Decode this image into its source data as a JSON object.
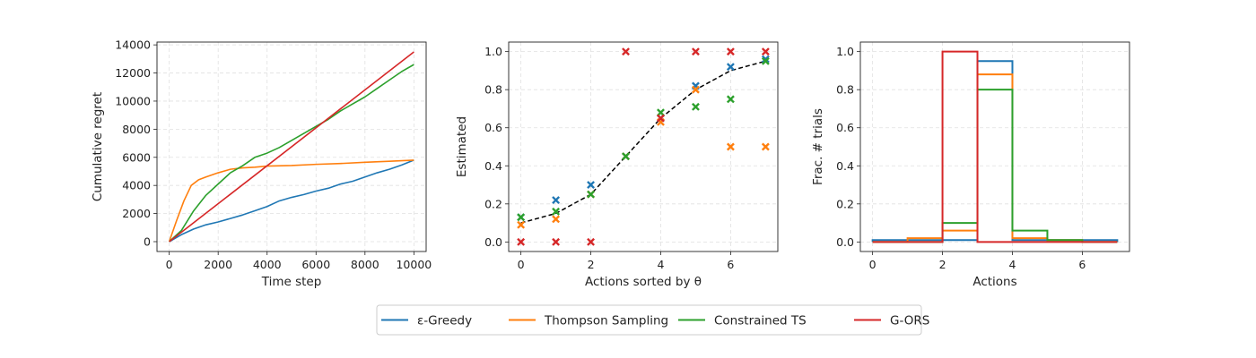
{
  "colors": {
    "eps_greedy": "#1f77b4",
    "thompson": "#ff7f0e",
    "constrained_ts": "#2ca02c",
    "g_ors": "#d62728",
    "reference": "#000000"
  },
  "legend": {
    "items": [
      {
        "label": "ε-Greedy",
        "color": "#1f77b4"
      },
      {
        "label": "Thompson Sampling",
        "color": "#ff7f0e"
      },
      {
        "label": "Constrained TS",
        "color": "#2ca02c"
      },
      {
        "label": "G-ORS",
        "color": "#d62728"
      }
    ]
  },
  "chart_data": [
    {
      "type": "line",
      "xlabel": "Time step",
      "ylabel": "Cumulative regret",
      "xlim": [
        -500,
        10500
      ],
      "ylim": [
        -700,
        14200
      ],
      "xticks": [
        0,
        2000,
        4000,
        6000,
        8000,
        10000
      ],
      "yticks": [
        0,
        2000,
        4000,
        6000,
        8000,
        10000,
        12000,
        14000
      ],
      "grid": true,
      "series": [
        {
          "name": "ε-Greedy",
          "color": "#1f77b4",
          "x": [
            0,
            500,
            1000,
            1500,
            2000,
            2500,
            3000,
            3500,
            4000,
            4500,
            5000,
            5500,
            6000,
            6500,
            7000,
            7500,
            8000,
            8500,
            9000,
            9500,
            10000
          ],
          "y": [
            0,
            500,
            900,
            1200,
            1400,
            1650,
            1900,
            2200,
            2500,
            2900,
            3150,
            3350,
            3600,
            3800,
            4100,
            4300,
            4600,
            4900,
            5150,
            5450,
            5800
          ]
        },
        {
          "name": "Thompson Sampling",
          "color": "#ff7f0e",
          "x": [
            0,
            300,
            600,
            900,
            1200,
            1500,
            2000,
            2500,
            3000,
            3500,
            4000,
            5000,
            6000,
            7000,
            8000,
            9000,
            10000
          ],
          "y": [
            0,
            1500,
            2900,
            4000,
            4400,
            4600,
            4900,
            5150,
            5250,
            5300,
            5380,
            5420,
            5500,
            5560,
            5650,
            5720,
            5800
          ]
        },
        {
          "name": "Constrained TS",
          "color": "#2ca02c",
          "x": [
            0,
            500,
            1000,
            1500,
            2000,
            2500,
            3000,
            3500,
            4000,
            4500,
            5000,
            5500,
            6000,
            6500,
            7000,
            7500,
            8000,
            8500,
            9000,
            9500,
            10000
          ],
          "y": [
            0,
            800,
            2200,
            3300,
            4100,
            4900,
            5400,
            6000,
            6300,
            6700,
            7200,
            7700,
            8200,
            8700,
            9300,
            9800,
            10300,
            10900,
            11500,
            12100,
            12600
          ]
        },
        {
          "name": "G-ORS",
          "color": "#d62728",
          "x": [
            0,
            10000
          ],
          "y": [
            0,
            13500
          ]
        }
      ]
    },
    {
      "type": "scatter",
      "xlabel": "Actions sorted by θ",
      "ylabel": "Estimated",
      "xlim": [
        -0.35,
        7.35
      ],
      "ylim": [
        -0.05,
        1.05
      ],
      "xticks": [
        0,
        2,
        4,
        6
      ],
      "yticks": [
        0.0,
        0.2,
        0.4,
        0.6,
        0.8,
        1.0
      ],
      "grid": true,
      "reference_line": {
        "x": [
          0,
          1,
          2,
          3,
          4,
          5,
          6,
          7
        ],
        "y": [
          0.1,
          0.15,
          0.25,
          0.45,
          0.65,
          0.8,
          0.9,
          0.95
        ]
      },
      "series": [
        {
          "name": "ε-Greedy",
          "color": "#1f77b4",
          "x": [
            0,
            1,
            2,
            3,
            4,
            5,
            6,
            7
          ],
          "y": [
            0.13,
            0.22,
            0.3,
            0.45,
            0.65,
            0.82,
            0.92,
            0.96
          ]
        },
        {
          "name": "Thompson Sampling",
          "color": "#ff7f0e",
          "x": [
            0,
            1,
            2,
            3,
            4,
            5,
            6,
            7
          ],
          "y": [
            0.09,
            0.12,
            0.25,
            0.45,
            0.63,
            0.8,
            0.5,
            0.5
          ]
        },
        {
          "name": "Constrained TS",
          "color": "#2ca02c",
          "x": [
            0,
            1,
            2,
            3,
            4,
            5,
            6,
            7
          ],
          "y": [
            0.13,
            0.16,
            0.25,
            0.45,
            0.68,
            0.71,
            0.75,
            0.95
          ]
        },
        {
          "name": "G-ORS",
          "color": "#d62728",
          "x": [
            0,
            1,
            2,
            3,
            4,
            5,
            6,
            7
          ],
          "y": [
            0.0,
            0.0,
            0.0,
            1.0,
            0.65,
            1.0,
            1.0,
            1.0
          ]
        }
      ]
    },
    {
      "type": "step",
      "xlabel": "Actions",
      "ylabel": "Frac. # trials",
      "xlim": [
        -0.35,
        7.35
      ],
      "ylim": [
        -0.05,
        1.05
      ],
      "xticks": [
        0,
        2,
        4,
        6
      ],
      "yticks": [
        0.0,
        0.2,
        0.4,
        0.6,
        0.8,
        1.0
      ],
      "grid": true,
      "bin_edges": [
        0,
        1,
        2,
        3,
        4,
        5,
        6,
        7
      ],
      "series": [
        {
          "name": "ε-Greedy",
          "color": "#1f77b4",
          "values": [
            0.01,
            0.01,
            0.01,
            0.95,
            0.01,
            0.01,
            0.01
          ]
        },
        {
          "name": "Thompson Sampling",
          "color": "#ff7f0e",
          "values": [
            0.0,
            0.02,
            0.06,
            0.88,
            0.02,
            0.01,
            0.0
          ]
        },
        {
          "name": "Constrained TS",
          "color": "#2ca02c",
          "values": [
            0.0,
            0.0,
            0.1,
            0.8,
            0.06,
            0.01,
            0.0
          ]
        },
        {
          "name": "G-ORS",
          "color": "#d62728",
          "values": [
            0.0,
            0.0,
            1.0,
            0.0,
            0.0,
            0.0,
            0.0
          ]
        }
      ]
    }
  ]
}
